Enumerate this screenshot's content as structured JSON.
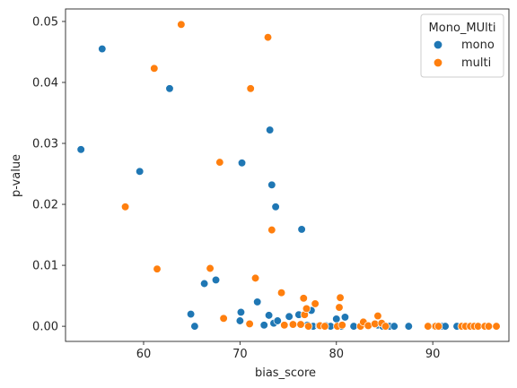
{
  "chart_data": {
    "type": "scatter",
    "title": "",
    "xlabel": "bias_score",
    "ylabel": "p-value",
    "xlim": [
      51.9,
      97.9
    ],
    "ylim": [
      -0.00248,
      0.05205
    ],
    "xticks": [
      60,
      70,
      80,
      90
    ],
    "yticks": [
      0.0,
      0.01,
      0.02,
      0.03,
      0.04,
      0.05
    ],
    "ytick_labels": [
      "0.00",
      "0.01",
      "0.02",
      "0.03",
      "0.04",
      "0.05"
    ],
    "grid": false,
    "legend": {
      "title": "Mono_MUlti",
      "placement": "top-right"
    },
    "series": [
      {
        "name": "mono",
        "color": "#1f77b4",
        "points": [
          [
            53.5,
            0.029
          ],
          [
            55.7,
            0.0455
          ],
          [
            59.6,
            0.0254
          ],
          [
            62.7,
            0.039
          ],
          [
            64.9,
            0.002
          ],
          [
            65.3,
            0.0
          ],
          [
            66.3,
            0.007
          ],
          [
            67.5,
            0.0076
          ],
          [
            70.0,
            0.0009
          ],
          [
            70.1,
            0.0023
          ],
          [
            70.2,
            0.0268
          ],
          [
            71.8,
            0.004
          ],
          [
            72.5,
            0.0002
          ],
          [
            73.0,
            0.0018
          ],
          [
            73.1,
            0.0322
          ],
          [
            73.3,
            0.0232
          ],
          [
            73.5,
            0.0005
          ],
          [
            73.7,
            0.0196
          ],
          [
            73.9,
            0.0009
          ],
          [
            75.1,
            0.0016
          ],
          [
            76.1,
            0.0019
          ],
          [
            76.4,
            0.0159
          ],
          [
            77.0,
            0.0002
          ],
          [
            77.4,
            0.0026
          ],
          [
            77.6,
            0.0
          ],
          [
            78.2,
            0.0001
          ],
          [
            78.9,
            0.0001
          ],
          [
            79.4,
            0.0
          ],
          [
            80.0,
            0.0012
          ],
          [
            80.5,
            0.0
          ],
          [
            80.9,
            0.0015
          ],
          [
            81.8,
            0.0
          ],
          [
            83.3,
            0.0
          ],
          [
            84.3,
            0.0002
          ],
          [
            84.8,
            0.0
          ],
          [
            85.5,
            0.0
          ],
          [
            86.0,
            0.0
          ],
          [
            87.5,
            0.0
          ],
          [
            90.2,
            0.0
          ],
          [
            91.0,
            0.0
          ],
          [
            91.3,
            0.0
          ],
          [
            92.5,
            0.0
          ],
          [
            94.4,
            0.0
          ]
        ]
      },
      {
        "name": "multi",
        "color": "#ff7f0e",
        "points": [
          [
            58.1,
            0.0196
          ],
          [
            61.1,
            0.0423
          ],
          [
            61.4,
            0.0094
          ],
          [
            63.9,
            0.0495
          ],
          [
            66.9,
            0.0095
          ],
          [
            67.9,
            0.0269
          ],
          [
            68.3,
            0.0013
          ],
          [
            71.0,
            0.0004
          ],
          [
            71.1,
            0.039
          ],
          [
            71.6,
            0.0079
          ],
          [
            72.9,
            0.0474
          ],
          [
            73.3,
            0.0158
          ],
          [
            74.3,
            0.0055
          ],
          [
            74.6,
            0.0002
          ],
          [
            75.5,
            0.0003
          ],
          [
            76.3,
            0.0003
          ],
          [
            76.6,
            0.0046
          ],
          [
            76.7,
            0.0019
          ],
          [
            76.9,
            0.0029
          ],
          [
            77.1,
            0.0
          ],
          [
            77.8,
            0.0037
          ],
          [
            78.3,
            0.0001
          ],
          [
            78.8,
            0.0
          ],
          [
            80.1,
            0.0
          ],
          [
            80.3,
            0.0031
          ],
          [
            80.4,
            0.0047
          ],
          [
            80.6,
            0.0002
          ],
          [
            82.5,
            0.0
          ],
          [
            82.8,
            0.0007
          ],
          [
            83.3,
            0.0001
          ],
          [
            84.0,
            0.0004
          ],
          [
            84.3,
            0.0017
          ],
          [
            84.7,
            0.0005
          ],
          [
            85.1,
            0.0
          ],
          [
            89.5,
            0.0
          ],
          [
            90.3,
            0.0
          ],
          [
            90.6,
            0.0
          ],
          [
            93.0,
            0.0
          ],
          [
            93.4,
            0.0
          ],
          [
            93.9,
            0.0
          ],
          [
            94.3,
            0.0
          ],
          [
            94.7,
            0.0
          ],
          [
            95.4,
            0.0
          ],
          [
            95.8,
            0.0
          ],
          [
            96.6,
            0.0
          ]
        ]
      }
    ]
  }
}
